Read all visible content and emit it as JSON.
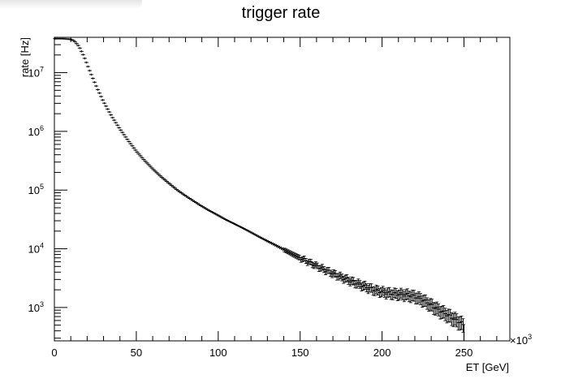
{
  "chart_data": {
    "type": "scatter",
    "title": "trigger rate",
    "xlabel": "ET [GeV]",
    "ylabel": "rate [Hz]",
    "x_multiplier": "×10",
    "x_multiplier_exp": "3",
    "xlim": [
      0,
      278
    ],
    "ylim": [
      270,
      40000000
    ],
    "y_scale": "log",
    "x_ticks": [
      0,
      50,
      100,
      150,
      200,
      250
    ],
    "x_tick_labels": [
      "0",
      "50",
      "100",
      "150",
      "200",
      "250"
    ],
    "y_ticks": [
      1000,
      10000,
      100000,
      1000000,
      10000000
    ],
    "y_tick_base": "10",
    "y_tick_exps": [
      "3",
      "4",
      "5",
      "6",
      "7"
    ],
    "grid": false,
    "legend": "none",
    "series": [
      {
        "points": [
          [
            0,
            38000000
          ],
          [
            5,
            38000000
          ],
          [
            10,
            37000000
          ],
          [
            12,
            35000000
          ],
          [
            15,
            28000000
          ],
          [
            18,
            19000000
          ],
          [
            22,
            10000000
          ],
          [
            26,
            5500000
          ],
          [
            30,
            3200000
          ],
          [
            35,
            1800000
          ],
          [
            40,
            1100000
          ],
          [
            45,
            700000
          ],
          [
            50,
            460000
          ],
          [
            55,
            320000
          ],
          [
            60,
            230000
          ],
          [
            65,
            170000
          ],
          [
            70,
            130000
          ],
          [
            75,
            100000
          ],
          [
            80,
            80000
          ],
          [
            85,
            65000
          ],
          [
            90,
            53000
          ],
          [
            95,
            44000
          ],
          [
            100,
            37000
          ],
          [
            105,
            31000
          ],
          [
            110,
            26500
          ],
          [
            115,
            22500
          ],
          [
            120,
            19000
          ],
          [
            125,
            16000
          ],
          [
            130,
            13500
          ],
          [
            135,
            11500
          ],
          [
            140,
            9700
          ],
          [
            145,
            8200
          ],
          [
            150,
            7000
          ],
          [
            155,
            6000
          ],
          [
            160,
            5100
          ],
          [
            165,
            4400
          ],
          [
            170,
            3800
          ],
          [
            175,
            3300
          ],
          [
            180,
            2900
          ],
          [
            185,
            2550
          ],
          [
            190,
            2250
          ],
          [
            195,
            2000
          ],
          [
            200,
            1850
          ],
          [
            205,
            1750
          ],
          [
            210,
            1700
          ],
          [
            215,
            1650
          ],
          [
            220,
            1550
          ],
          [
            225,
            1350
          ],
          [
            230,
            1100
          ],
          [
            235,
            900
          ],
          [
            240,
            750
          ],
          [
            245,
            620
          ],
          [
            248,
            550
          ],
          [
            250,
            500
          ]
        ]
      }
    ]
  }
}
